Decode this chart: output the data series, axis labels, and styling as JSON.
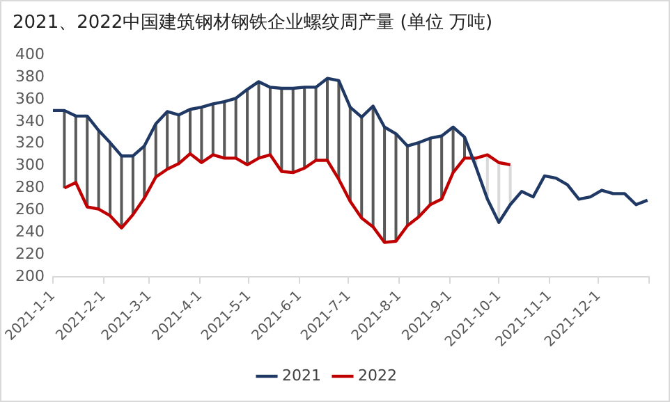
{
  "chart_data": {
    "type": "line",
    "title": "2021、2022中国建筑钢材钢铁企业螺纹周产量 (单位 万吨)",
    "x": [
      "2021-01-01",
      "2021-01-08",
      "2021-01-15",
      "2021-01-22",
      "2021-01-29",
      "2021-02-05",
      "2021-02-12",
      "2021-02-19",
      "2021-02-26",
      "2021-03-05",
      "2021-03-12",
      "2021-03-19",
      "2021-03-26",
      "2021-04-02",
      "2021-04-09",
      "2021-04-16",
      "2021-04-23",
      "2021-04-30",
      "2021-05-07",
      "2021-05-14",
      "2021-05-21",
      "2021-05-28",
      "2021-06-04",
      "2021-06-11",
      "2021-06-18",
      "2021-06-25",
      "2021-07-02",
      "2021-07-09",
      "2021-07-16",
      "2021-07-23",
      "2021-07-30",
      "2021-08-06",
      "2021-08-13",
      "2021-08-20",
      "2021-08-27",
      "2021-09-03",
      "2021-09-10",
      "2021-09-17",
      "2021-09-24",
      "2021-10-01",
      "2021-10-08",
      "2021-10-15",
      "2021-10-22",
      "2021-10-29",
      "2021-11-05",
      "2021-11-12",
      "2021-11-19",
      "2021-11-26",
      "2021-12-03",
      "2021-12-10",
      "2021-12-17",
      "2021-12-24",
      "2021-12-31"
    ],
    "series": [
      {
        "name": "2021",
        "color": "#203864",
        "values": [
          350,
          350,
          345,
          345,
          332,
          321,
          309,
          309,
          318,
          338,
          349,
          346,
          351,
          353,
          356,
          358,
          361,
          369,
          376,
          371,
          370,
          370,
          371,
          371,
          379,
          377,
          353,
          344,
          354,
          335,
          329,
          318,
          321,
          325,
          327,
          335,
          326,
          299,
          270,
          249,
          265,
          277,
          272,
          291,
          289,
          283,
          270,
          272,
          278,
          275,
          275,
          265,
          269
        ]
      },
      {
        "name": "2022",
        "color": "#c00000",
        "values": [
          null,
          280,
          285,
          263,
          261,
          255,
          244,
          256,
          271,
          290,
          297,
          302,
          311,
          303,
          310,
          307,
          307,
          301,
          307,
          310,
          295,
          294,
          298,
          305,
          305,
          288,
          268,
          253,
          245,
          231,
          232,
          246,
          254,
          265,
          270,
          294,
          307,
          307,
          310,
          303,
          301,
          null,
          null,
          null,
          null,
          null,
          null,
          null,
          null,
          null,
          null,
          null,
          null
        ],
        "errors": [
          null,
          [
            280,
            350
          ],
          [
            285,
            345
          ],
          [
            263,
            345
          ],
          [
            261,
            332
          ],
          [
            255,
            321
          ],
          [
            244,
            309
          ],
          [
            256,
            309
          ],
          [
            271,
            318
          ],
          [
            290,
            338
          ],
          [
            297,
            349
          ],
          [
            302,
            346
          ],
          [
            311,
            351
          ],
          [
            303,
            353
          ],
          [
            310,
            356
          ],
          [
            307,
            358
          ],
          [
            307,
            361
          ],
          [
            301,
            369
          ],
          [
            307,
            376
          ],
          [
            310,
            371
          ],
          [
            295,
            370
          ],
          [
            294,
            370
          ],
          [
            298,
            371
          ],
          [
            305,
            371
          ],
          [
            305,
            379
          ],
          [
            288,
            377
          ],
          [
            268,
            353
          ],
          [
            253,
            344
          ],
          [
            245,
            354
          ],
          [
            231,
            335
          ],
          [
            232,
            329
          ],
          [
            246,
            318
          ],
          [
            254,
            321
          ],
          [
            265,
            325
          ],
          [
            270,
            327
          ],
          [
            294,
            335
          ],
          [
            307,
            326
          ],
          [
            299,
            307
          ],
          [
            270,
            310
          ],
          [
            249,
            303
          ],
          [
            265,
            301
          ],
          null,
          null,
          null,
          null,
          null,
          null,
          null,
          null,
          null,
          null,
          null,
          null
        ]
      }
    ],
    "xlim": [
      "2021-01-01",
      "2022-01-01"
    ],
    "xticks": [
      {
        "value": "2021-01-01",
        "label": "2021-1-1"
      },
      {
        "value": "2021-02-01",
        "label": "2021-2-1"
      },
      {
        "value": "2021-03-01",
        "label": "2021-3-1"
      },
      {
        "value": "2021-04-01",
        "label": "2021-4-1"
      },
      {
        "value": "2021-05-01",
        "label": "2021-5-1"
      },
      {
        "value": "2021-06-01",
        "label": "2021-6-1"
      },
      {
        "value": "2021-07-01",
        "label": "2021-7-1"
      },
      {
        "value": "2021-08-01",
        "label": "2021-8-1"
      },
      {
        "value": "2021-09-01",
        "label": "2021-9-1"
      },
      {
        "value": "2021-10-01",
        "label": "2021-10-1"
      },
      {
        "value": "2021-11-01",
        "label": "2021-11-1"
      },
      {
        "value": "2021-12-01",
        "label": "2021-12-1"
      },
      {
        "value": "2022-01-01",
        "label": null
      }
    ],
    "ylim": [
      200,
      400
    ],
    "yticks": [
      200,
      220,
      240,
      260,
      280,
      300,
      320,
      340,
      360,
      380,
      400
    ],
    "grid": false,
    "legend": "bottom",
    "marker": "none",
    "line_style": "solid"
  }
}
